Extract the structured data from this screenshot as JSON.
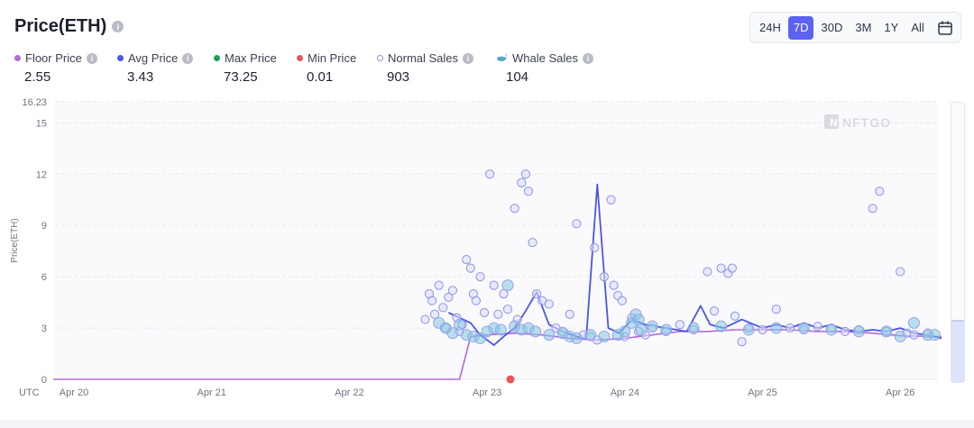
{
  "header": {
    "title": "Price(ETH)"
  },
  "ranges": {
    "items": [
      "24H",
      "7D",
      "30D",
      "3M",
      "1Y",
      "All"
    ],
    "active": "7D"
  },
  "stats": [
    {
      "label": "Floor Price",
      "value": "2.55",
      "color": "#b368d9",
      "info": true,
      "kind": "dot"
    },
    {
      "label": "Avg Price",
      "value": "3.43",
      "color": "#4b55e8",
      "info": true,
      "kind": "dot"
    },
    {
      "label": "Max Price",
      "value": "73.25",
      "color": "#1f9d55",
      "info": false,
      "kind": "dot"
    },
    {
      "label": "Min Price",
      "value": "0.01",
      "color": "#e85656",
      "info": false,
      "kind": "dot"
    },
    {
      "label": "Normal Sales",
      "value": "903",
      "color": "#8d93e8",
      "info": true,
      "kind": "ring"
    },
    {
      "label": "Whale Sales",
      "value": "104",
      "color": "#5aa7c9",
      "info": true,
      "kind": "whale"
    }
  ],
  "chart_data": {
    "type": "line",
    "ylabel": "Price(ETH)",
    "ylim": [
      0,
      16.23
    ],
    "y_ticks": [
      "0",
      "3",
      "6",
      "9",
      "12",
      "15",
      "16.23"
    ],
    "x_unit_label": "UTC",
    "x_ticks": [
      "Apr 20",
      "Apr 21",
      "Apr 22",
      "Apr 23",
      "Apr 24",
      "Apr 25",
      "Apr 26"
    ],
    "xlim": [
      -0.15,
      6.3
    ],
    "watermark": "NFTGO",
    "grid": true,
    "series": [
      {
        "name": "Floor Price",
        "color": "#b368d9",
        "points": [
          [
            -0.15,
            0
          ],
          [
            2.8,
            0
          ],
          [
            2.88,
            2.5
          ],
          [
            3.0,
            2.6
          ],
          [
            3.2,
            2.7
          ],
          [
            3.4,
            2.6
          ],
          [
            3.6,
            2.4
          ],
          [
            3.8,
            2.3
          ],
          [
            4.0,
            2.4
          ],
          [
            4.2,
            2.6
          ],
          [
            4.4,
            2.8
          ],
          [
            4.6,
            2.8
          ],
          [
            4.8,
            2.9
          ],
          [
            5.0,
            2.9
          ],
          [
            5.2,
            2.9
          ],
          [
            5.4,
            2.8
          ],
          [
            5.6,
            2.8
          ],
          [
            5.8,
            2.7
          ],
          [
            6.0,
            2.55
          ],
          [
            6.3,
            2.5
          ]
        ]
      },
      {
        "name": "Avg Price",
        "color": "#4b55e8",
        "points": [
          [
            2.72,
            3.9
          ],
          [
            2.8,
            3.6
          ],
          [
            2.88,
            3.3
          ],
          [
            2.95,
            2.6
          ],
          [
            3.05,
            2.0
          ],
          [
            3.12,
            2.5
          ],
          [
            3.2,
            3.0
          ],
          [
            3.28,
            4.0
          ],
          [
            3.36,
            5.1
          ],
          [
            3.45,
            3.2
          ],
          [
            3.55,
            2.8
          ],
          [
            3.65,
            2.5
          ],
          [
            3.72,
            2.4
          ],
          [
            3.8,
            11.4
          ],
          [
            3.88,
            3.0
          ],
          [
            3.96,
            2.7
          ],
          [
            4.05,
            3.5
          ],
          [
            4.15,
            3.2
          ],
          [
            4.3,
            3.0
          ],
          [
            4.45,
            2.8
          ],
          [
            4.55,
            4.3
          ],
          [
            4.62,
            3.2
          ],
          [
            4.72,
            3.0
          ],
          [
            4.85,
            3.5
          ],
          [
            5.0,
            3.0
          ],
          [
            5.1,
            3.2
          ],
          [
            5.2,
            3.0
          ],
          [
            5.3,
            3.3
          ],
          [
            5.4,
            3.0
          ],
          [
            5.5,
            3.2
          ],
          [
            5.6,
            2.9
          ],
          [
            5.7,
            2.8
          ],
          [
            5.8,
            2.9
          ],
          [
            5.9,
            2.8
          ],
          [
            6.0,
            3.0
          ],
          [
            6.1,
            2.7
          ],
          [
            6.2,
            2.6
          ],
          [
            6.3,
            2.4
          ]
        ]
      }
    ],
    "normal_sales": [
      [
        2.55,
        3.5
      ],
      [
        2.58,
        5.0
      ],
      [
        2.6,
        4.6
      ],
      [
        2.62,
        3.8
      ],
      [
        2.65,
        5.5
      ],
      [
        2.68,
        4.2
      ],
      [
        2.7,
        3.0
      ],
      [
        2.72,
        4.8
      ],
      [
        2.75,
        5.2
      ],
      [
        2.78,
        3.6
      ],
      [
        2.8,
        2.8
      ],
      [
        2.82,
        3.2
      ],
      [
        2.85,
        7.0
      ],
      [
        2.88,
        6.5
      ],
      [
        2.9,
        5.0
      ],
      [
        2.92,
        4.6
      ],
      [
        2.95,
        6.0
      ],
      [
        2.98,
        3.9
      ],
      [
        3.02,
        12.0
      ],
      [
        3.05,
        5.5
      ],
      [
        3.08,
        3.8
      ],
      [
        3.12,
        5.0
      ],
      [
        3.15,
        4.1
      ],
      [
        3.2,
        10.0
      ],
      [
        3.22,
        3.5
      ],
      [
        3.25,
        11.5
      ],
      [
        3.28,
        12.0
      ],
      [
        3.3,
        11.0
      ],
      [
        3.33,
        8.0
      ],
      [
        3.36,
        5.0
      ],
      [
        3.4,
        4.6
      ],
      [
        3.45,
        4.4
      ],
      [
        3.5,
        3.0
      ],
      [
        3.55,
        2.8
      ],
      [
        3.6,
        3.8
      ],
      [
        3.65,
        9.1
      ],
      [
        3.7,
        2.6
      ],
      [
        3.75,
        2.5
      ],
      [
        3.78,
        7.7
      ],
      [
        3.8,
        2.3
      ],
      [
        3.85,
        6.0
      ],
      [
        3.9,
        10.5
      ],
      [
        3.92,
        5.5
      ],
      [
        3.95,
        4.9
      ],
      [
        3.98,
        4.6
      ],
      [
        4.0,
        2.5
      ],
      [
        4.05,
        3.6
      ],
      [
        4.1,
        2.8
      ],
      [
        4.15,
        2.6
      ],
      [
        4.2,
        3.0
      ],
      [
        4.3,
        2.8
      ],
      [
        4.4,
        3.2
      ],
      [
        4.5,
        2.9
      ],
      [
        4.6,
        6.3
      ],
      [
        4.65,
        4.0
      ],
      [
        4.7,
        6.5
      ],
      [
        4.75,
        6.2
      ],
      [
        4.78,
        6.5
      ],
      [
        4.8,
        3.7
      ],
      [
        4.85,
        2.2
      ],
      [
        4.9,
        3.0
      ],
      [
        5.0,
        2.9
      ],
      [
        5.1,
        4.1
      ],
      [
        5.2,
        3.0
      ],
      [
        5.3,
        2.9
      ],
      [
        5.4,
        3.1
      ],
      [
        5.5,
        3.0
      ],
      [
        5.6,
        2.8
      ],
      [
        5.7,
        2.9
      ],
      [
        5.8,
        10.0
      ],
      [
        5.85,
        11.0
      ],
      [
        5.9,
        2.8
      ],
      [
        6.0,
        6.3
      ],
      [
        6.05,
        2.7
      ],
      [
        6.1,
        2.6
      ],
      [
        6.2,
        2.7
      ]
    ],
    "whale_sales": [
      [
        2.65,
        3.3
      ],
      [
        2.7,
        3.0
      ],
      [
        2.75,
        2.7
      ],
      [
        2.8,
        3.2
      ],
      [
        2.85,
        2.6
      ],
      [
        2.9,
        2.5
      ],
      [
        2.95,
        2.4
      ],
      [
        3.0,
        2.8
      ],
      [
        3.05,
        3.0
      ],
      [
        3.1,
        2.9
      ],
      [
        3.15,
        5.5
      ],
      [
        3.2,
        3.1
      ],
      [
        3.25,
        2.9
      ],
      [
        3.3,
        3.0
      ],
      [
        3.35,
        2.8
      ],
      [
        3.45,
        2.6
      ],
      [
        3.55,
        2.7
      ],
      [
        3.6,
        2.5
      ],
      [
        3.65,
        2.4
      ],
      [
        3.75,
        2.6
      ],
      [
        3.85,
        2.5
      ],
      [
        3.95,
        2.6
      ],
      [
        4.0,
        2.8
      ],
      [
        4.05,
        3.3
      ],
      [
        4.08,
        3.8
      ],
      [
        4.1,
        3.5
      ],
      [
        4.12,
        2.9
      ],
      [
        4.2,
        3.1
      ],
      [
        4.3,
        2.9
      ],
      [
        4.5,
        3.0
      ],
      [
        4.7,
        3.1
      ],
      [
        4.9,
        2.9
      ],
      [
        5.1,
        3.0
      ],
      [
        5.3,
        3.0
      ],
      [
        5.5,
        2.9
      ],
      [
        5.7,
        2.8
      ],
      [
        5.9,
        2.8
      ],
      [
        6.0,
        2.5
      ],
      [
        6.1,
        3.3
      ],
      [
        6.2,
        2.6
      ],
      [
        6.25,
        2.6
      ]
    ],
    "min_marker": {
      "x": 3.17,
      "y": 0,
      "color": "#e85656"
    }
  }
}
